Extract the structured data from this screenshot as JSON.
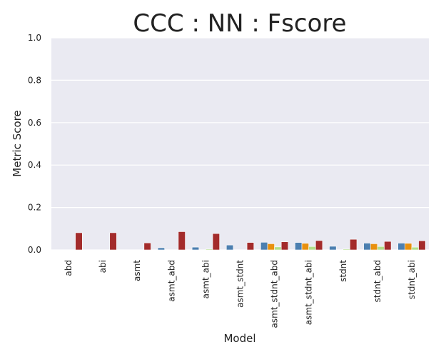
{
  "chart_data": {
    "type": "bar",
    "title": "CCC : NN : Fscore",
    "xlabel": "Model",
    "ylabel": "Metric Score",
    "ylim": [
      0,
      1.0
    ],
    "yticks": [
      "0.0",
      "0.2",
      "0.4",
      "0.6",
      "0.8",
      "1.0"
    ],
    "grid": true,
    "legend": "none",
    "categories": [
      "abd",
      "abi",
      "asmt",
      "asmt_abd",
      "asmt_abi",
      "asmt_stdnt",
      "asmt_stdnt_abd",
      "asmt_stdnt_abi",
      "stdnt",
      "stdnt_abd",
      "stdnt_abi"
    ],
    "series": [
      {
        "color": "#4c7fb0",
        "values": [
          0.0,
          0.0,
          0.0,
          0.01,
          0.013,
          0.023,
          0.036,
          0.035,
          0.017,
          0.032,
          0.032
        ]
      },
      {
        "color": "#e8900e",
        "values": [
          0.0,
          0.0,
          0.0,
          0.0,
          0.0,
          0.0,
          0.029,
          0.031,
          0.0,
          0.029,
          0.031
        ]
      },
      {
        "color": "#b2df8a",
        "values": [
          0.0,
          0.0,
          0.0,
          0.0,
          0.004,
          0.0,
          0.014,
          0.016,
          0.004,
          0.016,
          0.013
        ]
      },
      {
        "color": "#a32b2b",
        "values": [
          0.081,
          0.081,
          0.033,
          0.086,
          0.077,
          0.035,
          0.038,
          0.044,
          0.05,
          0.04,
          0.043
        ]
      }
    ]
  }
}
